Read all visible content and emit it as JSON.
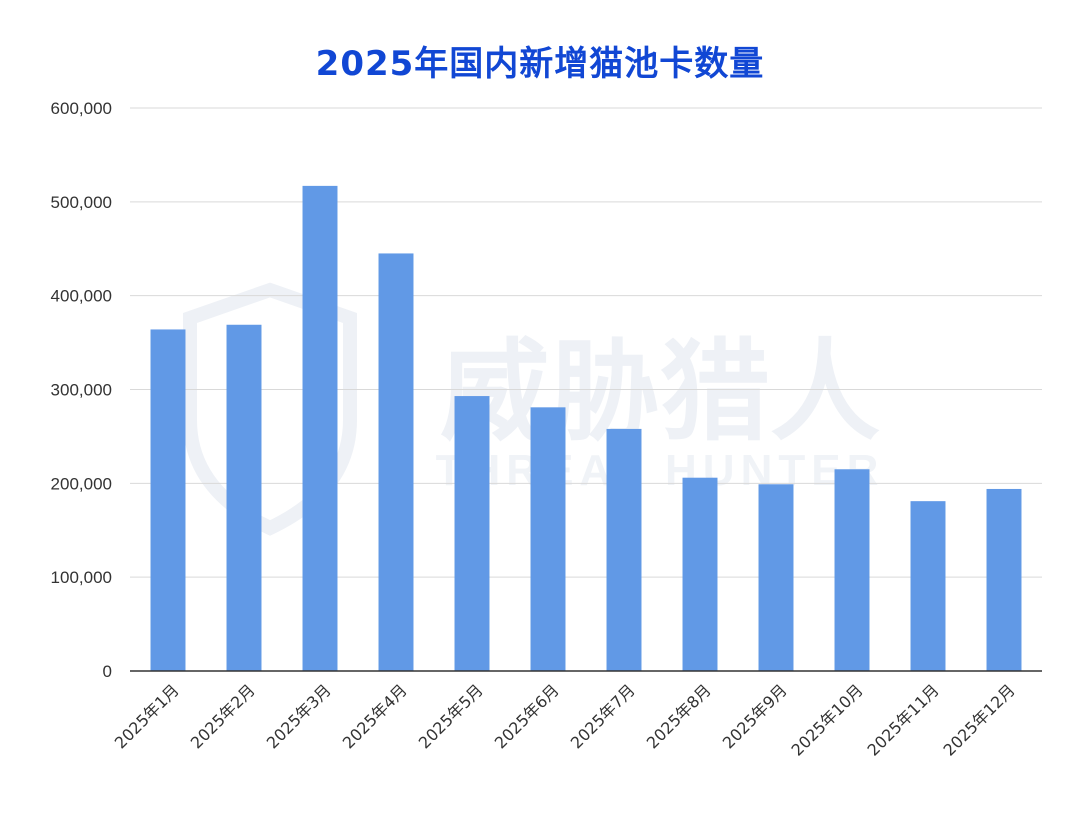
{
  "chart_data": {
    "type": "bar",
    "title": "2025年国内新增猫池卡数量",
    "categories": [
      "2025年1月",
      "2025年2月",
      "2025年3月",
      "2025年4月",
      "2025年5月",
      "2025年6月",
      "2025年7月",
      "2025年8月",
      "2025年9月",
      "2025年10月",
      "2025年11月",
      "2025年12月"
    ],
    "values": [
      364000,
      369000,
      517000,
      445000,
      293000,
      281000,
      258000,
      206000,
      199000,
      215000,
      181000,
      194000
    ],
    "ylim": [
      0,
      600000
    ],
    "yticks": [
      0,
      100000,
      200000,
      300000,
      400000,
      500000,
      600000
    ],
    "ytick_labels": [
      "0",
      "100,000",
      "200,000",
      "300,000",
      "400,000",
      "500,000",
      "600,000"
    ],
    "xlabel": "",
    "ylabel": "",
    "grid": true,
    "bar_color": "#6199e6",
    "title_color": "#1147d4"
  },
  "watermark": {
    "main": "威胁猎人",
    "sub": "THREAT HUNTER"
  }
}
